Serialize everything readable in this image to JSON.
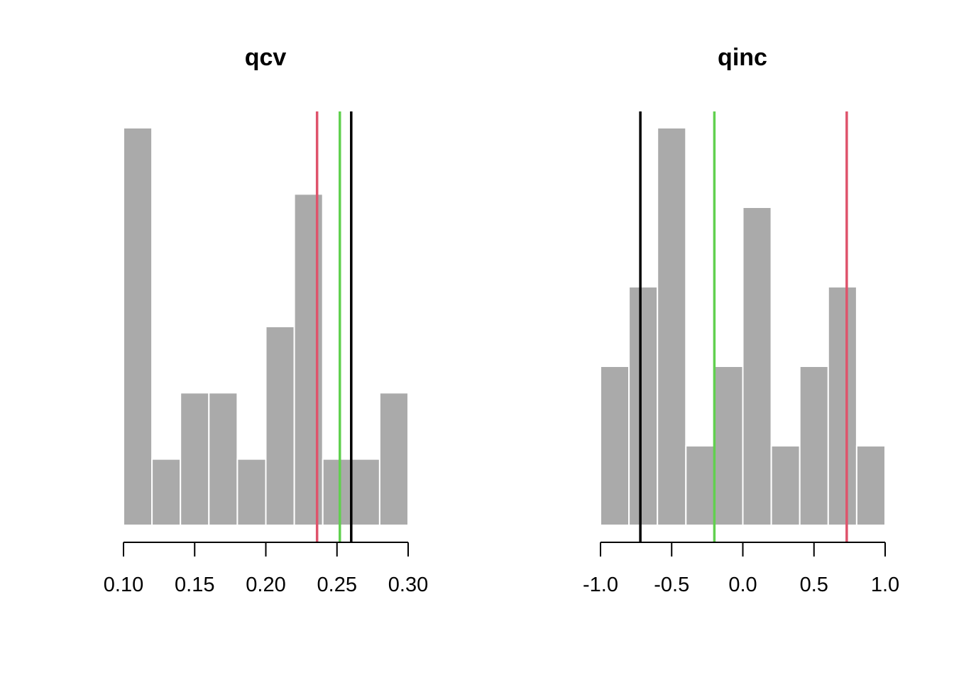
{
  "chart_data": [
    {
      "type": "bar",
      "title": "qcv",
      "xlabel": "",
      "ylabel": "",
      "xlim": [
        0.1,
        0.3
      ],
      "xticks": [
        0.1,
        0.15,
        0.2,
        0.25,
        0.3
      ],
      "xtick_labels": [
        "0.10",
        "0.15",
        "0.20",
        "0.25",
        "0.30"
      ],
      "bin_edges": [
        0.1,
        0.12,
        0.14,
        0.16,
        0.18,
        0.2,
        0.22,
        0.24,
        0.26,
        0.28,
        0.3
      ],
      "counts": [
        6,
        1,
        2,
        2,
        1,
        3,
        5,
        1,
        1,
        2
      ],
      "ylim": [
        0,
        6
      ],
      "bar_color": "#aaaaaa",
      "reference_lines": [
        {
          "value": 0.236,
          "color": "#df536b"
        },
        {
          "value": 0.252,
          "color": "#61d04f"
        },
        {
          "value": 0.26,
          "color": "#000000"
        }
      ]
    },
    {
      "type": "bar",
      "title": "qinc",
      "xlabel": "",
      "ylabel": "",
      "xlim": [
        -1.0,
        1.0
      ],
      "xticks": [
        -1.0,
        -0.5,
        0.0,
        0.5,
        1.0
      ],
      "xtick_labels": [
        "-1.0",
        "-0.5",
        "0.0",
        "0.5",
        "1.0"
      ],
      "bin_edges": [
        -1.0,
        -0.8,
        -0.6,
        -0.4,
        -0.2,
        0.0,
        0.2,
        0.4,
        0.6,
        0.8,
        1.0
      ],
      "counts": [
        2,
        3,
        5,
        1,
        2,
        4,
        1,
        2,
        3,
        1
      ],
      "ylim": [
        0,
        5
      ],
      "bar_color": "#aaaaaa",
      "reference_lines": [
        {
          "value": -0.72,
          "color": "#000000"
        },
        {
          "value": -0.2,
          "color": "#61d04f"
        },
        {
          "value": 0.73,
          "color": "#df536b"
        }
      ]
    }
  ]
}
